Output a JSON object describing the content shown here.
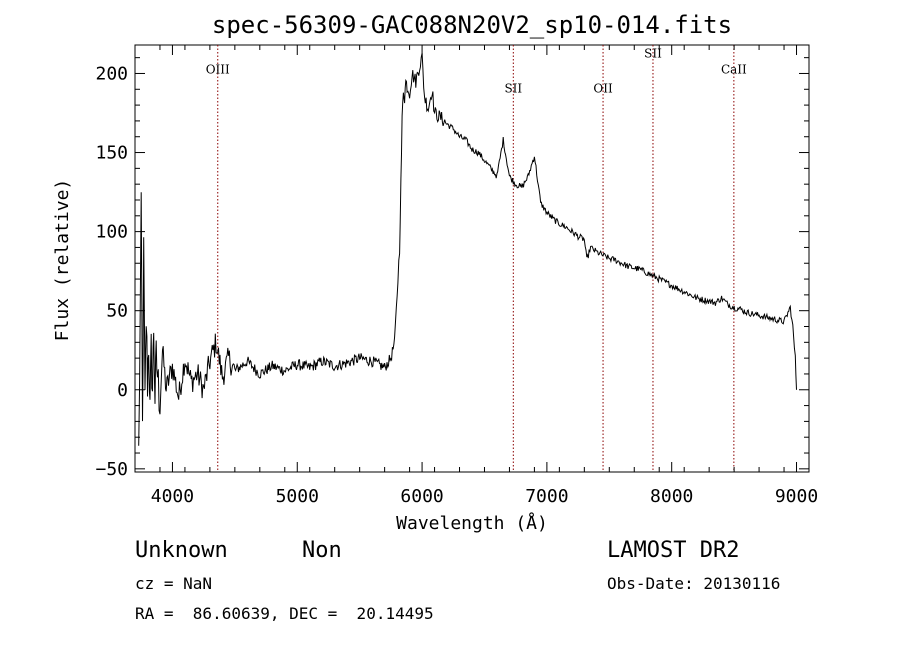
{
  "chart_data": {
    "type": "line",
    "title": "spec-56309-GAC088N20V2_sp10-014.fits",
    "xlabel": "Wavelength (Å)",
    "ylabel": "Flux (relative)",
    "xlim": [
      3700,
      9100
    ],
    "ylim": [
      -52,
      218
    ],
    "xticks": [
      4000,
      5000,
      6000,
      7000,
      8000,
      9000
    ],
    "yticks": [
      -50,
      0,
      50,
      100,
      150,
      200
    ],
    "grid": false,
    "line_color": "#000000",
    "marker_color": "#8b0000",
    "markers": [
      {
        "label": "OIII",
        "x": 4363,
        "label_y": 200
      },
      {
        "label": "SII",
        "x": 6731,
        "label_y": 188
      },
      {
        "label": "OII",
        "x": 7450,
        "label_y": 188
      },
      {
        "label": "SII",
        "x": 7850,
        "label_y": 210
      },
      {
        "label": "CaII",
        "x": 8498,
        "label_y": 200
      }
    ],
    "series": [
      {
        "x": [
          3730,
          3750,
          3760,
          3770,
          3780,
          3790,
          3800,
          3810,
          3820,
          3830,
          3840,
          3850,
          3860,
          3870,
          3880,
          3900,
          3920,
          3950,
          4000,
          4050,
          4100,
          4150,
          4200,
          4250,
          4300,
          4350,
          4400,
          4450,
          4500,
          4600,
          4700,
          4800,
          4900,
          5000,
          5100,
          5200,
          5300,
          5400,
          5500,
          5600,
          5700,
          5750,
          5780,
          5800,
          5820,
          5830,
          5840,
          5850,
          5860,
          5870,
          5880,
          5900,
          5920,
          5950,
          5980,
          6000,
          6020,
          6050,
          6080,
          6100,
          6150,
          6200,
          6250,
          6300,
          6350,
          6400,
          6450,
          6500,
          6550,
          6600,
          6650,
          6700,
          6750,
          6800,
          6850,
          6900,
          6950,
          7000,
          7050,
          7100,
          7150,
          7200,
          7250,
          7300,
          7320,
          7350,
          7400,
          7450,
          7500,
          7550,
          7600,
          7650,
          7700,
          7750,
          7800,
          7850,
          7900,
          7950,
          8000,
          8050,
          8100,
          8150,
          8200,
          8250,
          8300,
          8350,
          8400,
          8450,
          8500,
          8550,
          8600,
          8650,
          8700,
          8750,
          8800,
          8850,
          8900,
          8950,
          8970,
          8990,
          9000
        ],
        "y": [
          -40,
          110,
          -25,
          85,
          -10,
          45,
          5,
          30,
          -15,
          25,
          0,
          40,
          -5,
          20,
          10,
          -10,
          25,
          0,
          15,
          -5,
          20,
          5,
          10,
          0,
          18,
          30,
          8,
          20,
          12,
          18,
          10,
          15,
          12,
          16,
          14,
          18,
          15,
          17,
          20,
          18,
          14,
          20,
          30,
          60,
          90,
          130,
          170,
          190,
          185,
          195,
          192,
          188,
          200,
          195,
          205,
          210,
          185,
          178,
          190,
          175,
          172,
          168,
          165,
          160,
          158,
          152,
          150,
          145,
          140,
          135,
          158,
          135,
          130,
          128,
          135,
          148,
          118,
          112,
          108,
          105,
          103,
          100,
          97,
          95,
          82,
          90,
          87,
          85,
          83,
          82,
          80,
          78,
          77,
          76,
          74,
          72,
          70,
          68,
          66,
          64,
          62,
          60,
          58,
          57,
          56,
          55,
          58,
          54,
          52,
          51,
          49,
          48,
          47,
          46,
          45,
          44,
          43,
          52,
          40,
          20,
          0
        ]
      }
    ]
  },
  "info": {
    "object_class": "Unknown",
    "object_subclass": "Non",
    "survey": "LAMOST DR2",
    "redshift": "cz = NaN",
    "obs_date": "Obs-Date: 20130116",
    "coords": "RA =  86.60639, DEC =  20.14495"
  }
}
